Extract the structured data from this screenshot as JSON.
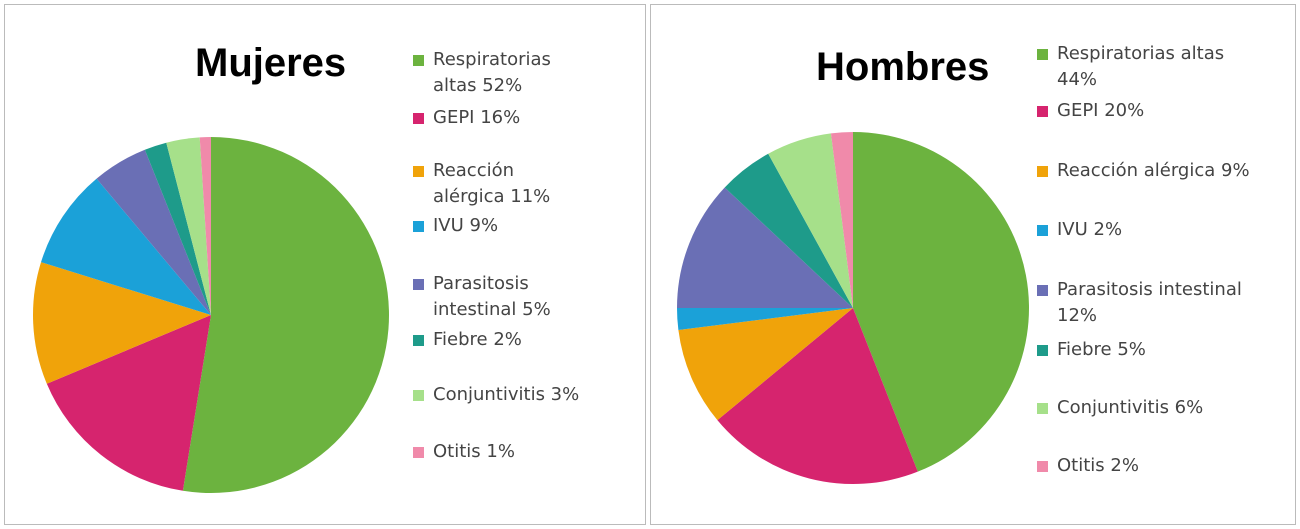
{
  "chart_data": [
    {
      "type": "pie",
      "title": "Mujeres",
      "categories": [
        "Respiratorias altas 52%",
        "GEPI 16%",
        "Reacción alérgica 11%",
        "IVU 9%",
        "Parasitosis intestinal 5%",
        "Fiebre 2%",
        "Conjuntivitis 3%",
        "Otitis 1%"
      ],
      "values": [
        52,
        16,
        11,
        9,
        5,
        2,
        3,
        1
      ],
      "colors": [
        "#6cb33f",
        "#d6246e",
        "#f0a30a",
        "#1ba1d8",
        "#6a6fb5",
        "#1e9b8a",
        "#a6e08a",
        "#f08aaa"
      ]
    },
    {
      "type": "pie",
      "title": "Hombres",
      "categories": [
        "Respiratorias altas 44%",
        "GEPI 20%",
        "Reacción alérgica 9%",
        "IVU 2%",
        "Parasitosis intestinal 12%",
        "Fiebre 5%",
        "Conjuntivitis 6%",
        "Otitis 2%"
      ],
      "values": [
        44,
        20,
        9,
        2,
        12,
        5,
        6,
        2
      ],
      "colors": [
        "#6cb33f",
        "#d6246e",
        "#f0a30a",
        "#1ba1d8",
        "#6a6fb5",
        "#1e9b8a",
        "#a6e08a",
        "#f08aaa"
      ]
    }
  ]
}
